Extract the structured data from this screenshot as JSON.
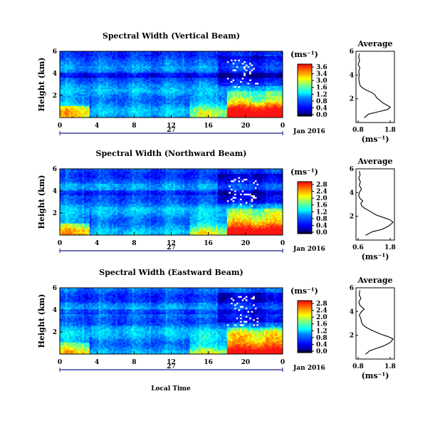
{
  "figure": {
    "bottom_label": "Local Time",
    "date_mark": "27",
    "date_label": "Jan 2016",
    "colorbar_unit": "(ms⁻¹)",
    "average_xlabel": "(ms⁻¹)"
  },
  "chart_data": [
    {
      "type": "heatmap",
      "title": "Spectral Width (Vertical Beam)",
      "ylabel": "Height (km)",
      "x_ticks": [
        "0",
        "4",
        "8",
        "12",
        "16",
        "20",
        "0"
      ],
      "y_ticks": [
        "6",
        "4",
        "2"
      ],
      "xlim": [
        0,
        24
      ],
      "ylim": [
        0,
        6
      ],
      "colorbar_ticks": [
        "3.6",
        "3.4",
        "3.0",
        "1.6",
        "1.2",
        "0.8",
        "0.4",
        "0.0"
      ],
      "average": {
        "title": "Average",
        "x_ticks": [
          "0.8",
          "1.8"
        ],
        "y_ticks": [
          "6",
          "4",
          "2"
        ],
        "xlim": [
          0.6,
          2.0
        ],
        "profile": [
          [
            0.9,
            0.4
          ],
          [
            1.05,
            0.7
          ],
          [
            1.4,
            0.9
          ],
          [
            1.75,
            1.1
          ],
          [
            1.85,
            1.3
          ],
          [
            1.7,
            1.5
          ],
          [
            1.55,
            1.7
          ],
          [
            1.45,
            1.9
          ],
          [
            1.35,
            2.1
          ],
          [
            1.3,
            2.3
          ],
          [
            1.2,
            2.5
          ],
          [
            1.0,
            2.7
          ],
          [
            0.85,
            2.9
          ],
          [
            0.75,
            3.1
          ],
          [
            0.72,
            3.4
          ],
          [
            0.7,
            3.7
          ],
          [
            0.72,
            4.0
          ],
          [
            0.7,
            4.3
          ],
          [
            0.74,
            4.6
          ],
          [
            0.68,
            4.9
          ],
          [
            0.73,
            5.2
          ],
          [
            0.7,
            5.5
          ],
          [
            0.72,
            5.8
          ]
        ]
      }
    },
    {
      "type": "heatmap",
      "title": "Spectral Width (Northward Beam)",
      "ylabel": "Height (km)",
      "x_ticks": [
        "0",
        "4",
        "8",
        "12",
        "16",
        "20",
        "0"
      ],
      "y_ticks": [
        "6",
        "4",
        "2"
      ],
      "xlim": [
        0,
        24
      ],
      "ylim": [
        0,
        6
      ],
      "colorbar_ticks": [
        "2.8",
        "2.4",
        "2.0",
        "1.6",
        "1.2",
        "0.8",
        "0.4",
        "0.0"
      ],
      "average": {
        "title": "Average",
        "x_ticks": [
          "0.6",
          "1.8"
        ],
        "y_ticks": [
          "6",
          "4",
          "2"
        ],
        "xlim": [
          0.6,
          2.0
        ],
        "profile": [
          [
            0.95,
            0.4
          ],
          [
            1.2,
            0.7
          ],
          [
            1.55,
            0.9
          ],
          [
            1.8,
            1.2
          ],
          [
            1.95,
            1.5
          ],
          [
            1.85,
            1.7
          ],
          [
            1.6,
            1.9
          ],
          [
            1.35,
            2.1
          ],
          [
            1.2,
            2.3
          ],
          [
            1.05,
            2.5
          ],
          [
            0.9,
            2.7
          ],
          [
            0.8,
            2.9
          ],
          [
            0.78,
            3.1
          ],
          [
            0.85,
            3.3
          ],
          [
            0.75,
            3.5
          ],
          [
            0.7,
            3.7
          ],
          [
            0.72,
            4.0
          ],
          [
            0.8,
            4.3
          ],
          [
            0.72,
            4.6
          ],
          [
            0.76,
            4.9
          ],
          [
            0.7,
            5.2
          ],
          [
            0.75,
            5.5
          ],
          [
            0.72,
            5.8
          ]
        ]
      }
    },
    {
      "type": "heatmap",
      "title": "Spectral Width (Eastward Beam)",
      "ylabel": "Height (km)",
      "x_ticks": [
        "0",
        "4",
        "8",
        "12",
        "16",
        "20",
        "0"
      ],
      "y_ticks": [
        "6",
        "4",
        "2"
      ],
      "xlim": [
        0,
        24
      ],
      "ylim": [
        0,
        6
      ],
      "colorbar_ticks": [
        "2.8",
        "2.4",
        "2.0",
        "1.6",
        "1.2",
        "0.8",
        "0.4",
        "0.0"
      ],
      "average": {
        "title": "Average",
        "x_ticks": [
          "0.8",
          "1.8"
        ],
        "y_ticks": [
          "6",
          "4",
          "2"
        ],
        "xlim": [
          0.6,
          2.0
        ],
        "profile": [
          [
            0.95,
            0.4
          ],
          [
            1.1,
            0.7
          ],
          [
            1.35,
            0.9
          ],
          [
            1.6,
            1.1
          ],
          [
            1.85,
            1.4
          ],
          [
            1.95,
            1.7
          ],
          [
            1.75,
            1.9
          ],
          [
            1.5,
            2.1
          ],
          [
            1.3,
            2.3
          ],
          [
            1.1,
            2.5
          ],
          [
            0.95,
            2.7
          ],
          [
            0.85,
            2.9
          ],
          [
            0.8,
            3.1
          ],
          [
            0.78,
            3.4
          ],
          [
            0.72,
            3.7
          ],
          [
            0.8,
            4.0
          ],
          [
            0.9,
            4.2
          ],
          [
            0.75,
            4.5
          ],
          [
            0.7,
            4.8
          ],
          [
            0.78,
            5.1
          ],
          [
            0.72,
            5.4
          ],
          [
            0.74,
            5.8
          ]
        ]
      }
    }
  ]
}
